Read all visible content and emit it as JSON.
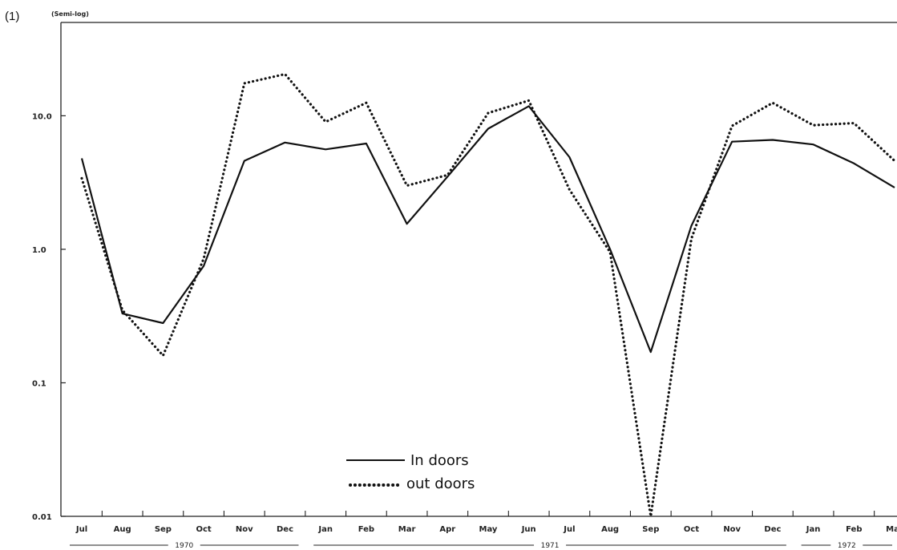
{
  "panel_label": "(1)",
  "scale_note": "(Semi-log)",
  "chart_data": {
    "type": "line",
    "y_scale": "log",
    "ylim": [
      0.01,
      50
    ],
    "y_ticks": [
      {
        "value": 0.01,
        "label": "0.01"
      },
      {
        "value": 0.1,
        "label": "0.1"
      },
      {
        "value": 1.0,
        "label": "1.0"
      },
      {
        "value": 10.0,
        "label": "10.0"
      }
    ],
    "categories": [
      "Jul",
      "Aug",
      "Sep",
      "Oct",
      "Nov",
      "Dec",
      "Jan",
      "Feb",
      "Mar",
      "Apr",
      "May",
      "Jun",
      "Jul",
      "Aug",
      "Sep",
      "Oct",
      "Nov",
      "Dec",
      "Jan",
      "Feb",
      "Mar"
    ],
    "years": [
      {
        "label": "1970",
        "from": 0,
        "to": 5
      },
      {
        "label": "1971",
        "from": 6,
        "to": 17
      },
      {
        "label": "1972",
        "from": 18,
        "to": 20
      }
    ],
    "series": [
      {
        "name": "In doors",
        "style": "solid",
        "values": [
          4.8,
          0.33,
          0.28,
          0.75,
          4.6,
          6.3,
          5.6,
          6.2,
          1.55,
          3.5,
          8.0,
          11.8,
          4.9,
          1.0,
          0.17,
          1.5,
          6.4,
          6.6,
          6.1,
          4.4,
          2.9
        ]
      },
      {
        "name": "out doors",
        "style": "dotted",
        "values": [
          3.4,
          0.35,
          0.16,
          0.85,
          17.5,
          20.5,
          9.0,
          12.5,
          3.0,
          3.6,
          10.5,
          13.0,
          2.8,
          0.95,
          0.01,
          1.2,
          8.4,
          12.5,
          8.5,
          8.8,
          4.6
        ]
      }
    ],
    "legend_position": "bottom-center",
    "grid": false
  },
  "legend": {
    "indoors_label": "In doors",
    "outdoors_label": "out doors"
  }
}
